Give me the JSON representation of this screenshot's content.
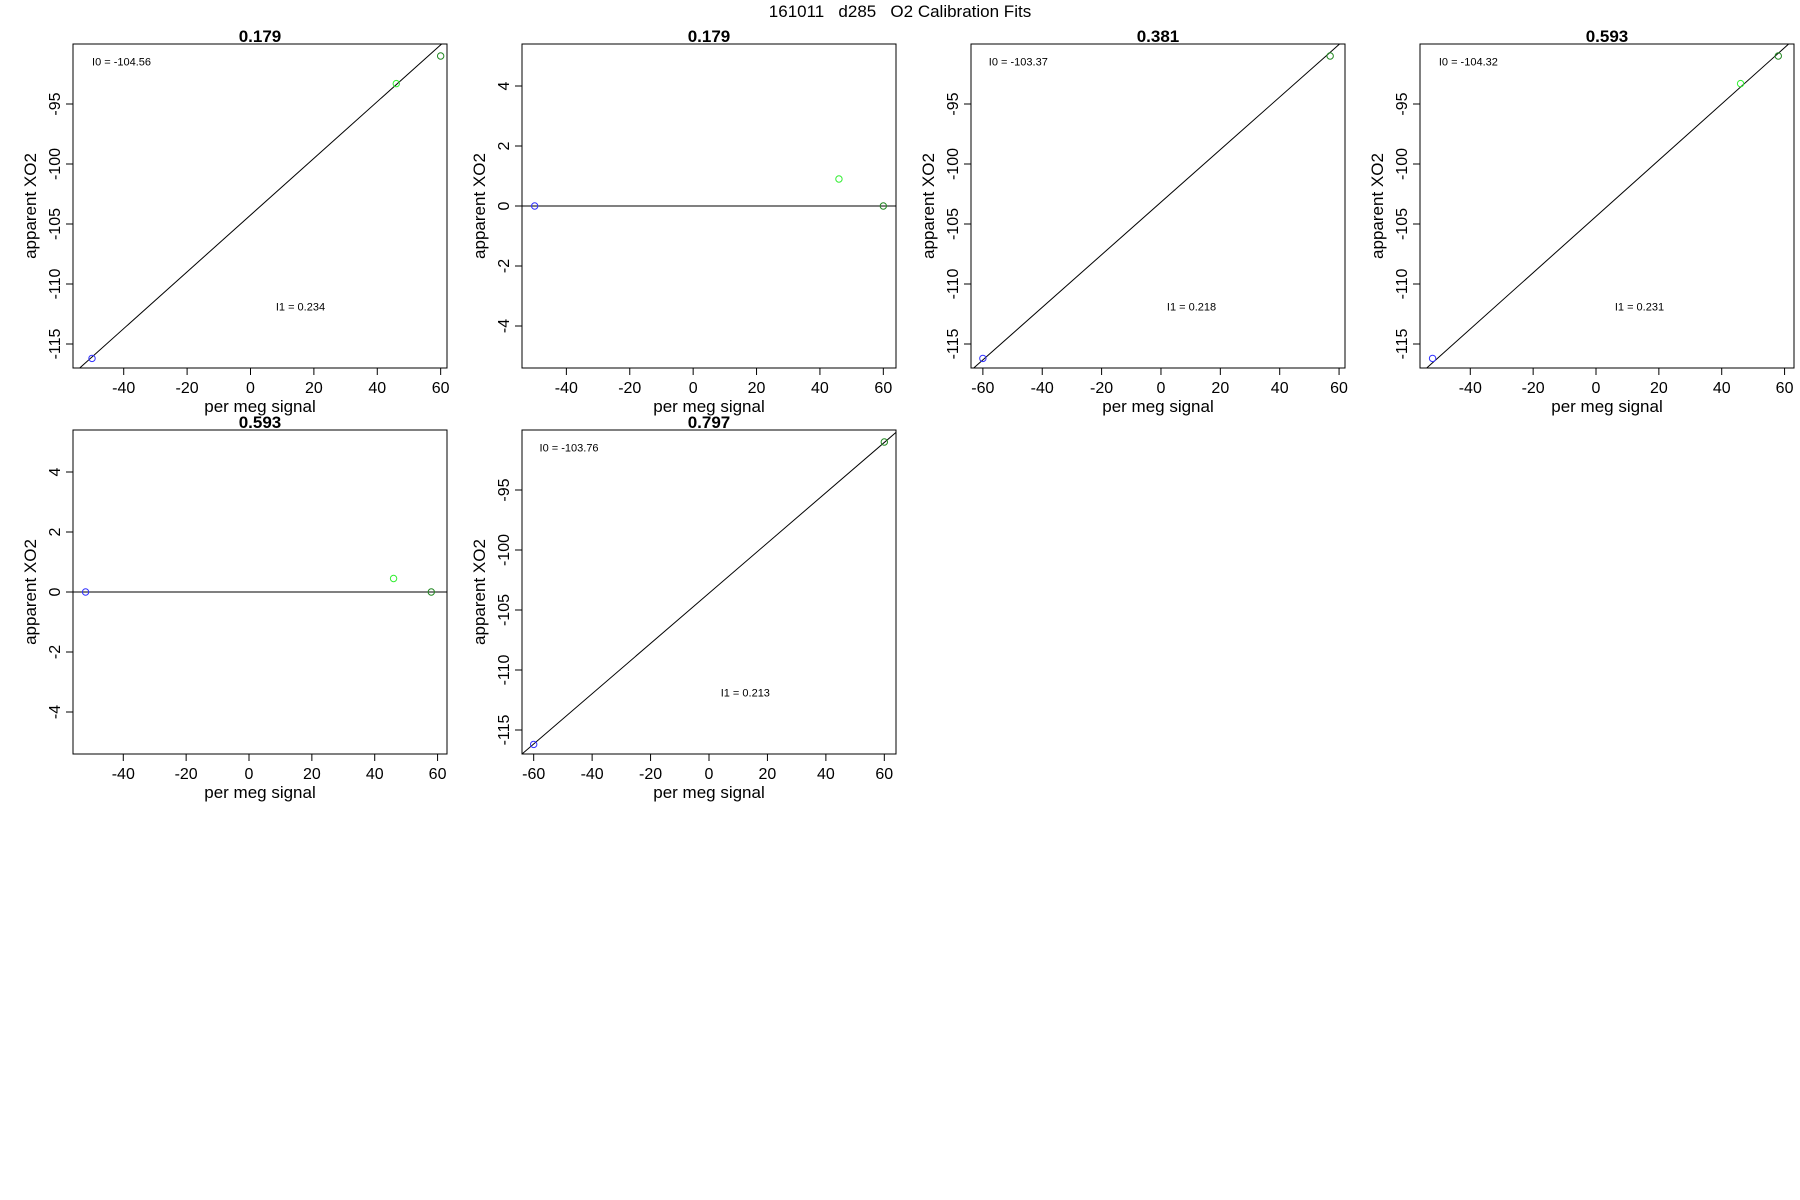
{
  "page": {
    "title": "161011   d285   O2 Calibration Fits"
  },
  "colors": {
    "blue": "#3333ff",
    "green_light": "#33ee33",
    "green_dark": "#228822",
    "line": "#000000"
  },
  "chart_data": [
    {
      "type": "scatter",
      "title": "0.179",
      "xlabel": "per meg signal",
      "ylabel": "apparent XO2",
      "xlim": [
        -56,
        62
      ],
      "ylim": [
        -117,
        -90
      ],
      "xticks": [
        "-40",
        "-20",
        "0",
        "20",
        "40",
        "60"
      ],
      "yticks": [
        "-115",
        "-110",
        "-105",
        "-100",
        "-95"
      ],
      "points": [
        {
          "x": -50,
          "y": -116.2,
          "color": "blue"
        },
        {
          "x": 46,
          "y": -93.3,
          "color": "green_light"
        },
        {
          "x": 60,
          "y": -91.0,
          "color": "green_dark"
        }
      ],
      "fit_line": [
        [
          -56,
          -117.5
        ],
        [
          62,
          -89.6
        ]
      ],
      "annotations": [
        {
          "text": "I0 =  -104.56",
          "x": -50,
          "y": -91.8
        },
        {
          "text": "I1 =  0.234",
          "x": 8,
          "y": -112.2
        }
      ]
    },
    {
      "type": "scatter",
      "title": "0.179",
      "xlabel": "per meg signal",
      "ylabel": "apparent XO2",
      "xlim": [
        -54,
        64
      ],
      "ylim": [
        -5.4,
        5.4
      ],
      "xticks": [
        "-40",
        "-20",
        "0",
        "20",
        "40",
        "60"
      ],
      "yticks": [
        "-4",
        "-2",
        "0",
        "2",
        "4"
      ],
      "points": [
        {
          "x": -50,
          "y": 0.0,
          "color": "blue"
        },
        {
          "x": 46,
          "y": 0.9,
          "color": "green_light"
        },
        {
          "x": 60,
          "y": 0.0,
          "color": "green_dark"
        }
      ],
      "fit_line": [
        [
          -54,
          0
        ],
        [
          64,
          0
        ]
      ],
      "annotations": []
    },
    {
      "type": "scatter",
      "title": "0.381",
      "xlabel": "per meg signal",
      "ylabel": "apparent XO2",
      "xlim": [
        -64,
        62
      ],
      "ylim": [
        -117,
        -90
      ],
      "xticks": [
        "-60",
        "-40",
        "-20",
        "0",
        "20",
        "40",
        "60"
      ],
      "yticks": [
        "-115",
        "-110",
        "-105",
        "-100",
        "-95"
      ],
      "points": [
        {
          "x": -60,
          "y": -116.2,
          "color": "blue"
        },
        {
          "x": 57,
          "y": -91.0,
          "color": "green_dark"
        }
      ],
      "fit_line": [
        [
          -64,
          -117.2
        ],
        [
          62,
          -89.6
        ]
      ],
      "annotations": [
        {
          "text": "I0 =  -103.37",
          "x": -58,
          "y": -91.8
        },
        {
          "text": "I1 =  0.218",
          "x": 2,
          "y": -112.2
        }
      ]
    },
    {
      "type": "scatter",
      "title": "0.593",
      "xlabel": "per meg signal",
      "ylabel": "apparent XO2",
      "xlim": [
        -56,
        63
      ],
      "ylim": [
        -117,
        -90
      ],
      "xticks": [
        "-40",
        "-20",
        "0",
        "20",
        "40",
        "60"
      ],
      "yticks": [
        "-115",
        "-110",
        "-105",
        "-100",
        "-95"
      ],
      "points": [
        {
          "x": -52,
          "y": -116.2,
          "color": "blue"
        },
        {
          "x": 46,
          "y": -93.3,
          "color": "green_light"
        },
        {
          "x": 58,
          "y": -91.0,
          "color": "green_dark"
        }
      ],
      "fit_line": [
        [
          -56,
          -117.5
        ],
        [
          63,
          -89.6
        ]
      ],
      "annotations": [
        {
          "text": "I0 =  -104.32",
          "x": -50,
          "y": -91.8
        },
        {
          "text": "I1 =  0.231",
          "x": 6,
          "y": -112.2
        }
      ]
    },
    {
      "type": "scatter",
      "title": "0.593",
      "xlabel": "per meg signal",
      "ylabel": "apparent XO2",
      "xlim": [
        -56,
        63
      ],
      "ylim": [
        -5.4,
        5.4
      ],
      "xticks": [
        "-40",
        "-20",
        "0",
        "20",
        "40",
        "60"
      ],
      "yticks": [
        "-4",
        "-2",
        "0",
        "2",
        "4"
      ],
      "points": [
        {
          "x": -52,
          "y": 0.0,
          "color": "blue"
        },
        {
          "x": 46,
          "y": 0.45,
          "color": "green_light"
        },
        {
          "x": 58,
          "y": 0.0,
          "color": "green_dark"
        }
      ],
      "fit_line": [
        [
          -56,
          0
        ],
        [
          63,
          0
        ]
      ],
      "annotations": []
    },
    {
      "type": "scatter",
      "title": "0.797",
      "xlabel": "per meg signal",
      "ylabel": "apparent XO2",
      "xlim": [
        -64,
        64
      ],
      "ylim": [
        -117,
        -90
      ],
      "xticks": [
        "-60",
        "-40",
        "-20",
        "0",
        "20",
        "40",
        "60"
      ],
      "yticks": [
        "-115",
        "-110",
        "-105",
        "-100",
        "-95"
      ],
      "points": [
        {
          "x": -60,
          "y": -116.2,
          "color": "blue"
        },
        {
          "x": 60,
          "y": -91.0,
          "color": "green_dark"
        }
      ],
      "fit_line": [
        [
          -64,
          -117.0
        ],
        [
          64,
          -90.2
        ]
      ],
      "annotations": [
        {
          "text": "I0 =  -103.76",
          "x": -58,
          "y": -91.8
        },
        {
          "text": "I1 =  0.213",
          "x": 4,
          "y": -112.2
        }
      ]
    }
  ]
}
